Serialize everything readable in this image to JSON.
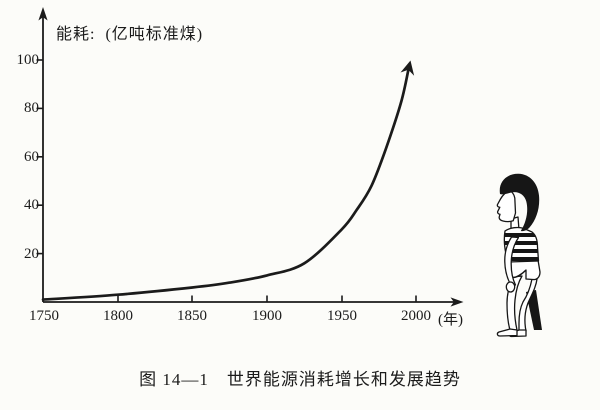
{
  "chart_data": {
    "type": "line",
    "title": "图 14—1　世界能源消耗增长和发展趋势",
    "ylabel": "能耗:  (亿吨标准煤)",
    "xlabel": "",
    "x_unit": "(年)",
    "x_ticks": [
      "1750",
      "1800",
      "1850",
      "1900",
      "1950",
      "2000"
    ],
    "y_ticks": [
      "20",
      "40",
      "60",
      "80",
      "100"
    ],
    "xlim": [
      1750,
      2010
    ],
    "ylim": [
      0,
      110
    ],
    "grid": false,
    "legend_position": "none",
    "line_color": "#1b1b1b",
    "series": [
      {
        "name": "世界能源消耗",
        "x": [
          1750,
          1800,
          1850,
          1875,
          1900,
          1925,
          1950,
          1960,
          1970,
          1980,
          1990,
          1995
        ],
        "values": [
          1,
          3,
          6,
          8,
          11,
          16,
          30,
          38,
          48,
          64,
          83,
          97
        ],
        "end_marker": "arrow-up"
      }
    ]
  },
  "illustration": {
    "child_icon": "child-looking-up-cartoon"
  }
}
